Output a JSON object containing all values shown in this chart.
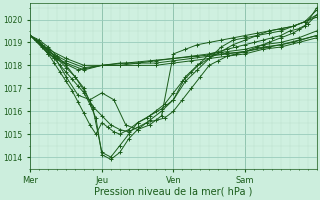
{
  "title": "",
  "xlabel": "Pression niveau de la mer( hPa )",
  "bg_color": "#cceedd",
  "plot_bg_color": "#cff0e0",
  "line_color": "#1a5c1a",
  "grid_color_major": "#99ccbb",
  "grid_color_minor": "#bbddcc",
  "tick_color": "#1a5c1a",
  "xlim": [
    0,
    96
  ],
  "ylim": [
    1013.5,
    1020.7
  ],
  "yticks": [
    1014,
    1015,
    1016,
    1017,
    1018,
    1019,
    1020
  ],
  "xtick_labels": [
    "Mer",
    "Jeu",
    "Ven",
    "Sam"
  ],
  "xtick_positions": [
    0,
    24,
    48,
    72
  ],
  "lines": [
    {
      "x": [
        0,
        2,
        4,
        6,
        8,
        10,
        12,
        14,
        16,
        18,
        20,
        22,
        24,
        27,
        30,
        33,
        36,
        40,
        44,
        48,
        52,
        56,
        60,
        64,
        68,
        72,
        76,
        80,
        84,
        88,
        92,
        96
      ],
      "y": [
        1019.3,
        1019.1,
        1018.9,
        1018.6,
        1018.3,
        1018.0,
        1017.7,
        1017.4,
        1017.1,
        1016.8,
        1016.3,
        1015.7,
        1014.1,
        1013.9,
        1014.2,
        1014.8,
        1015.2,
        1015.6,
        1016.0,
        1016.5,
        1017.3,
        1017.8,
        1018.3,
        1018.8,
        1019.1,
        1019.2,
        1019.3,
        1019.4,
        1019.5,
        1019.7,
        1019.9,
        1020.4
      ]
    },
    {
      "x": [
        0,
        3,
        6,
        9,
        12,
        15,
        18,
        21,
        24,
        27,
        30,
        33,
        36,
        40,
        44,
        48,
        52,
        56,
        60,
        64,
        68,
        72,
        76,
        80,
        84,
        88,
        92,
        96
      ],
      "y": [
        1019.3,
        1019.0,
        1018.7,
        1018.3,
        1017.9,
        1017.5,
        1017.0,
        1016.1,
        1014.2,
        1014.0,
        1014.5,
        1015.0,
        1015.5,
        1015.8,
        1016.1,
        1016.5,
        1017.5,
        1018.0,
        1018.3,
        1018.6,
        1018.9,
        1019.1,
        1019.3,
        1019.5,
        1019.6,
        1019.7,
        1019.9,
        1020.2
      ]
    },
    {
      "x": [
        0,
        6,
        12,
        18,
        24,
        30,
        36,
        42,
        48,
        54,
        60,
        66,
        72,
        78,
        84,
        90,
        96
      ],
      "y": [
        1019.3,
        1018.7,
        1018.3,
        1018.0,
        1018.0,
        1018.0,
        1018.0,
        1018.0,
        1018.1,
        1018.2,
        1018.3,
        1018.4,
        1018.5,
        1018.7,
        1018.8,
        1019.0,
        1019.2
      ]
    },
    {
      "x": [
        0,
        6,
        12,
        18,
        24,
        30,
        36,
        42,
        48,
        54,
        60,
        66,
        72,
        78,
        84,
        90,
        96
      ],
      "y": [
        1019.3,
        1018.6,
        1018.2,
        1017.9,
        1018.0,
        1018.0,
        1018.1,
        1018.1,
        1018.2,
        1018.3,
        1018.4,
        1018.5,
        1018.6,
        1018.8,
        1018.9,
        1019.1,
        1019.3
      ]
    },
    {
      "x": [
        0,
        6,
        12,
        18,
        24,
        30,
        36,
        42,
        48,
        54,
        60,
        66,
        72,
        78,
        84,
        90,
        96
      ],
      "y": [
        1019.3,
        1018.5,
        1018.1,
        1017.8,
        1018.0,
        1018.1,
        1018.1,
        1018.2,
        1018.3,
        1018.4,
        1018.5,
        1018.6,
        1018.7,
        1018.9,
        1019.0,
        1019.2,
        1019.5
      ]
    },
    {
      "x": [
        0,
        8,
        16,
        24,
        32,
        40,
        48,
        56,
        64,
        72,
        80,
        88,
        96
      ],
      "y": [
        1019.3,
        1018.3,
        1017.8,
        1018.0,
        1018.1,
        1018.2,
        1018.3,
        1018.4,
        1018.5,
        1018.6,
        1018.8,
        1019.0,
        1019.3
      ]
    },
    {
      "x": [
        0,
        4,
        8,
        12,
        16,
        20,
        24,
        28,
        32,
        36,
        40,
        44,
        48,
        52,
        56,
        60,
        64,
        68,
        72,
        76,
        80,
        84,
        88,
        92,
        96
      ],
      "y": [
        1019.3,
        1018.9,
        1018.4,
        1017.5,
        1016.7,
        1016.5,
        1016.8,
        1016.5,
        1015.4,
        1015.2,
        1015.4,
        1015.8,
        1018.5,
        1018.7,
        1018.9,
        1019.0,
        1019.1,
        1019.2,
        1019.3,
        1019.4,
        1019.5,
        1019.6,
        1019.7,
        1019.9,
        1020.1
      ]
    },
    {
      "x": [
        0,
        3,
        6,
        9,
        12,
        15,
        18,
        21,
        24,
        27,
        30,
        33,
        36,
        39,
        42,
        45,
        48,
        51,
        54,
        57,
        60,
        63,
        66,
        69,
        72,
        76,
        80,
        84,
        88,
        92,
        96
      ],
      "y": [
        1019.3,
        1019.1,
        1018.8,
        1018.4,
        1018.0,
        1017.5,
        1016.9,
        1016.2,
        1015.8,
        1015.4,
        1015.2,
        1015.1,
        1015.3,
        1015.5,
        1015.6,
        1015.7,
        1016.0,
        1016.5,
        1017.0,
        1017.5,
        1018.0,
        1018.2,
        1018.4,
        1018.5,
        1018.6,
        1018.8,
        1019.0,
        1019.2,
        1019.4,
        1019.7,
        1020.5
      ]
    },
    {
      "x": [
        0,
        2,
        4,
        6,
        8,
        10,
        12,
        14,
        16,
        18,
        20,
        22,
        24,
        26,
        28,
        30,
        33,
        36,
        39,
        42,
        45,
        48,
        51,
        54,
        57,
        60,
        63,
        66,
        69,
        72,
        75,
        78,
        81,
        84,
        87,
        90,
        93,
        96
      ],
      "y": [
        1019.3,
        1019.1,
        1018.8,
        1018.5,
        1018.1,
        1017.7,
        1017.3,
        1016.9,
        1016.4,
        1015.9,
        1015.4,
        1015.0,
        1015.5,
        1015.3,
        1015.1,
        1015.0,
        1015.2,
        1015.5,
        1015.7,
        1016.0,
        1016.3,
        1016.8,
        1017.3,
        1017.7,
        1018.1,
        1018.5,
        1018.6,
        1018.7,
        1018.8,
        1018.9,
        1019.0,
        1019.1,
        1019.2,
        1019.3,
        1019.5,
        1019.6,
        1019.8,
        1020.2
      ]
    }
  ]
}
